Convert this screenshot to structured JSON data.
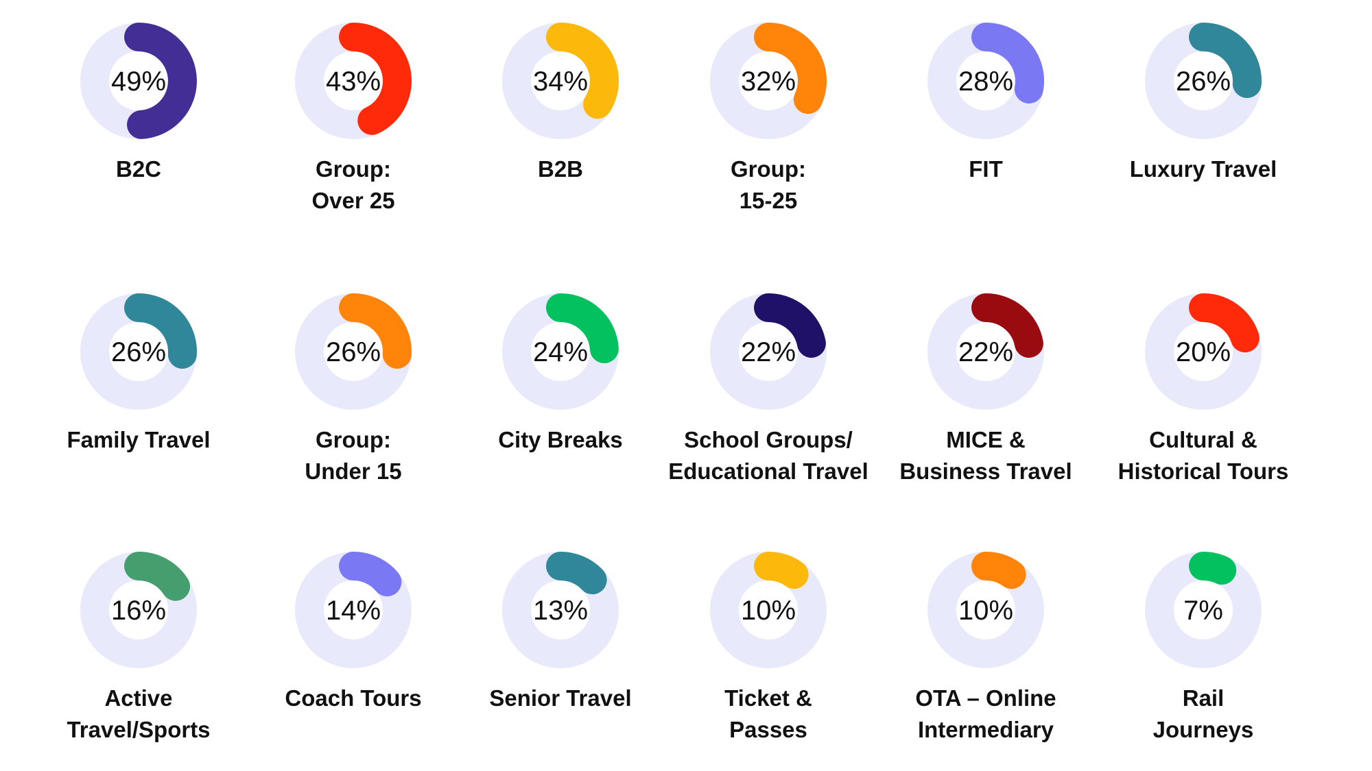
{
  "chart_data": {
    "type": "donut-grid",
    "unit": "%",
    "track_color": "#E8E9FB",
    "items": [
      {
        "label": [
          "B2C"
        ],
        "value": 49,
        "display": "49%",
        "color": "#432E96"
      },
      {
        "label": [
          "Group:",
          "Over 25"
        ],
        "value": 43,
        "display": "43%",
        "color": "#FF2A0A"
      },
      {
        "label": [
          "B2B"
        ],
        "value": 34,
        "display": "34%",
        "color": "#FDB90B"
      },
      {
        "label": [
          "Group:",
          "15-25"
        ],
        "value": 32,
        "display": "32%",
        "color": "#FF8409"
      },
      {
        "label": [
          "FIT"
        ],
        "value": 28,
        "display": "28%",
        "color": "#7B78F3"
      },
      {
        "label": [
          "Luxury Travel"
        ],
        "value": 26,
        "display": "26%",
        "color": "#2F8799"
      },
      {
        "label": [
          "Family Travel"
        ],
        "value": 26,
        "display": "26%",
        "color": "#2F8799"
      },
      {
        "label": [
          "Group:",
          "Under 15"
        ],
        "value": 26,
        "display": "26%",
        "color": "#FF8409"
      },
      {
        "label": [
          "City Breaks"
        ],
        "value": 24,
        "display": "24%",
        "color": "#04C160"
      },
      {
        "label": [
          "School Groups/",
          "Educational Travel"
        ],
        "value": 22,
        "display": "22%",
        "color": "#1F1168"
      },
      {
        "label": [
          "MICE &",
          "Business Travel"
        ],
        "value": 22,
        "display": "22%",
        "color": "#9A0B10"
      },
      {
        "label": [
          "Cultural &",
          "Historical Tours"
        ],
        "value": 20,
        "display": "20%",
        "color": "#FF2A0A"
      },
      {
        "label": [
          "Active",
          "Travel/Sports"
        ],
        "value": 16,
        "display": "16%",
        "color": "#449E6E"
      },
      {
        "label": [
          "Coach Tours"
        ],
        "value": 14,
        "display": "14%",
        "color": "#7B78F3"
      },
      {
        "label": [
          "Senior Travel"
        ],
        "value": 13,
        "display": "13%",
        "color": "#2F8799"
      },
      {
        "label": [
          "Ticket &",
          "Passes"
        ],
        "value": 10,
        "display": "10%",
        "color": "#FDB90B"
      },
      {
        "label": [
          "OTA – Online",
          "Intermediary"
        ],
        "value": 10,
        "display": "10%",
        "color": "#FF8409"
      },
      {
        "label": [
          "Rail",
          "Journeys"
        ],
        "value": 7,
        "display": "7%",
        "color": "#04C160"
      }
    ]
  }
}
